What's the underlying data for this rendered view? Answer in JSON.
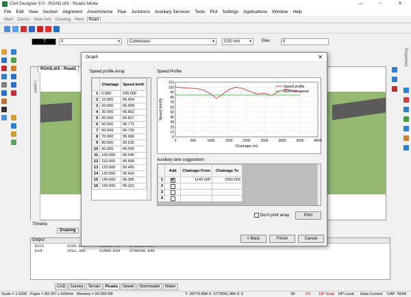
{
  "window": {
    "title": "Civil Designer 9.0 - ROAD.dr5 : Roads Mode",
    "minimize": "—",
    "maximize": "▫",
    "close": "✕"
  },
  "menu": [
    "File",
    "Edit",
    "View",
    "Section",
    "Alignment",
    "Area/Volume",
    "Pipe",
    "Junctions",
    "Auxiliary Services",
    "Tools",
    "Plot",
    "Settings",
    "Applications",
    "Window",
    "Help"
  ],
  "view_tabs": [
    "Main",
    "Zooms",
    "View Axis",
    "Drawing",
    "Pens",
    "Road"
  ],
  "props": {
    "color_index": "7",
    "layer": "0",
    "linetype": "Continuous",
    "width": "0.00 mm",
    "elev_label": "Elev.",
    "elev_value": "0"
  },
  "viewport": {
    "doc_tab": "ROAD.dr5 : Road1",
    "scale_label": "70metre",
    "drawing_tab": "Drawing",
    "side_label": "Layers",
    "props_label": "Properties"
  },
  "dialog": {
    "title": "Graph",
    "close": "✕",
    "speed_profile_array_label": "Speed profile Array",
    "speed_profile_label": "Speed Profile",
    "table_headers": [
      "Chainage",
      "Speed km/h"
    ],
    "rows": [
      {
        "n": "1",
        "chainage": "0.000",
        "speed": "100.000"
      },
      {
        "n": "2",
        "chainage": "10.000",
        "speed": "99.954"
      },
      {
        "n": "3",
        "chainage": "20.000",
        "speed": "99.908"
      },
      {
        "n": "4",
        "chainage": "30.000",
        "speed": "99.862"
      },
      {
        "n": "5",
        "chainage": "40.000",
        "speed": "99.817"
      },
      {
        "n": "6",
        "chainage": "50.000",
        "speed": "99.771"
      },
      {
        "n": "7",
        "chainage": "60.000",
        "speed": "99.725"
      },
      {
        "n": "8",
        "chainage": "70.000",
        "speed": "99.680"
      },
      {
        "n": "9",
        "chainage": "80.000",
        "speed": "99.635"
      },
      {
        "n": "10",
        "chainage": "90.000",
        "speed": "99.590"
      },
      {
        "n": "11",
        "chainage": "100.000",
        "speed": "99.545"
      },
      {
        "n": "12",
        "chainage": "110.000",
        "speed": "99.500"
      },
      {
        "n": "13",
        "chainage": "120.000",
        "speed": "99.455"
      },
      {
        "n": "14",
        "chainage": "130.000",
        "speed": "99.410"
      },
      {
        "n": "15",
        "chainage": "140.000",
        "speed": "99.365"
      },
      {
        "n": "16",
        "chainage": "150.000",
        "speed": "99.321"
      }
    ],
    "aux_label": "Auxiliary lane suggestions",
    "aux_headers": [
      "Add",
      "Chainage From",
      "Chainage To"
    ],
    "aux_rows": [
      {
        "n": "1",
        "checked": true,
        "from": "1140.000",
        "to": "1550.000"
      },
      {
        "n": "2",
        "checked": false,
        "from": "",
        "to": ""
      },
      {
        "n": "3",
        "checked": false,
        "from": "",
        "to": ""
      },
      {
        "n": "4",
        "checked": false,
        "from": "",
        "to": ""
      }
    ],
    "dont_print_label": "Don't print array",
    "print_button": "Print",
    "back_button": "< Back",
    "finish_button": "Finish",
    "cancel_button": "Cancel"
  },
  "chart_data": {
    "type": "line",
    "xlabel": "Chainage (m)",
    "ylabel": "Speed (km/h)",
    "xlim": [
      0,
      4000
    ],
    "ylim": [
      0,
      110
    ],
    "xticks": [
      0,
      500,
      1000,
      1500,
      2000,
      2500,
      3000,
      3500,
      4000
    ],
    "yticks": [
      0,
      10,
      20,
      30,
      40,
      50,
      60,
      70,
      80,
      90,
      100,
      110
    ],
    "grid": true,
    "legend": "top-right",
    "series": [
      {
        "name": "Speed profile",
        "color": "#c83232",
        "x": [
          0,
          300,
          600,
          800,
          1000,
          1150,
          1300,
          1500,
          1700,
          1900,
          2100,
          2300,
          2500,
          2700,
          2900,
          3100,
          3300,
          3500
        ],
        "y": [
          100,
          98,
          97,
          94,
          86,
          77,
          84,
          95,
          100,
          97,
          91,
          86,
          88,
          83,
          91,
          96,
          93,
          91
        ]
      },
      {
        "name": "Minimum speed",
        "color": "#3cb43c",
        "x": [
          0,
          3500
        ],
        "y": [
          84,
          84
        ]
      }
    ]
  },
  "output": {
    "header": "Output",
    "lines": [
      "ECCS          3196.669      31088.478    3769612.511",
      "",
      "End           3512.305      31090.019    3769296.840"
    ]
  },
  "bottom_tabs": [
    "CAD",
    "Survey",
    "Terrain",
    "Roads",
    "Sewer",
    "Stormwater",
    "Water"
  ],
  "status": {
    "scale": "Scale = 1:1000",
    "paper": "Paper = A3 297 x 420mm",
    "memory": "Memory = 20.595 KB",
    "coords": "Y: 30776.894 X: 3770541.984 Z: 0",
    "sf": "SF",
    "vs": "VS",
    "dp_snap": "DP Snap",
    "dp_local": "DP Local",
    "data_current": "Data Current",
    "cap": "CAP",
    "num": "NUM"
  },
  "colors": {
    "terrain": "#8fb56b",
    "road": "#5a5a5a",
    "speed_line": "#c83232",
    "min_line": "#3cb43c"
  }
}
